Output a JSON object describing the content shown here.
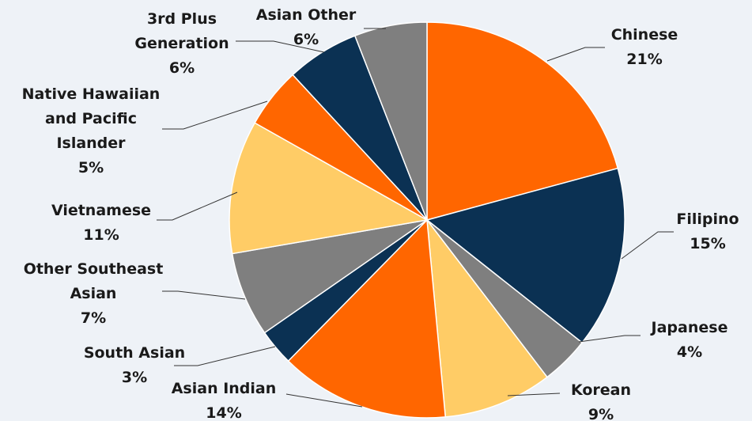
{
  "chart_data": {
    "type": "pie",
    "title": "",
    "start_angle_deg": 0,
    "direction": "clockwise",
    "slices": [
      {
        "name": "Chinese",
        "label": "Chinese",
        "value": 21,
        "display": "21%",
        "color": "#ff6600"
      },
      {
        "name": "Filipino",
        "label": "Filipino",
        "value": 15,
        "display": "15%",
        "color": "#0b3153"
      },
      {
        "name": "Japanese",
        "label": "Japanese",
        "value": 4,
        "display": "4%",
        "color": "#7f7f7f"
      },
      {
        "name": "Korean",
        "label": "Korean",
        "value": 9,
        "display": "9%",
        "color": "#ffcc66"
      },
      {
        "name": "Asian Indian",
        "label": "Asian Indian",
        "value": 14,
        "display": "14%",
        "color": "#ff6600"
      },
      {
        "name": "South Asian",
        "label": "South Asian",
        "value": 3,
        "display": "3%",
        "color": "#0b3153"
      },
      {
        "name": "Other Southeast Asian",
        "label": "Other Southeast\nAsian",
        "value": 7,
        "display": "7%",
        "color": "#7f7f7f"
      },
      {
        "name": "Vietnamese",
        "label": "Vietnamese",
        "value": 11,
        "display": "11%",
        "color": "#ffcc66"
      },
      {
        "name": "Native Hawaiian and Pacific Islander",
        "label": "Native Hawaiian\nand Pacific\nIslander",
        "value": 5,
        "display": "5%",
        "color": "#ff6600"
      },
      {
        "name": "3rd Plus Generation",
        "label": "3rd Plus\nGeneration",
        "value": 6,
        "display": "6%",
        "color": "#0b3153"
      },
      {
        "name": "Asian Other",
        "label": "Asian Other",
        "value": 6,
        "display": "6%",
        "color": "#7f7f7f"
      }
    ]
  }
}
